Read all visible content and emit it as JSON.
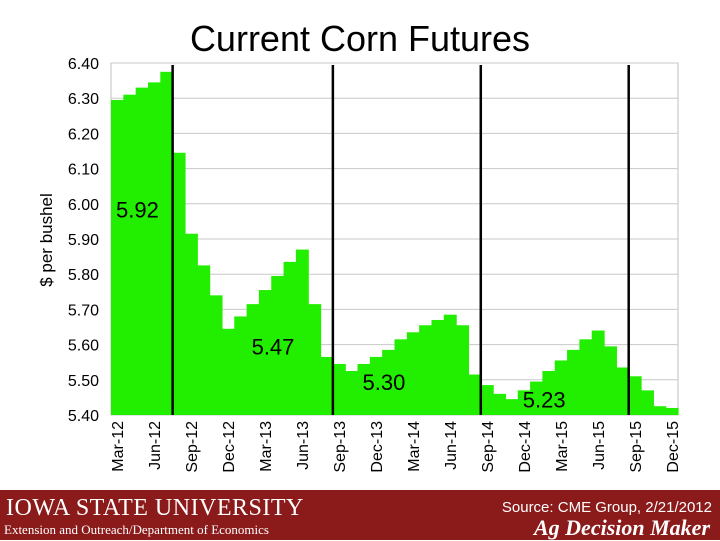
{
  "chart_data": {
    "type": "bar",
    "title": "Current Corn Futures",
    "ylabel": "$ per bushel",
    "xlabel": "",
    "ylim": [
      5.4,
      6.4
    ],
    "yticks": [
      "6.40",
      "6.30",
      "6.20",
      "6.10",
      "6.00",
      "5.90",
      "5.80",
      "5.70",
      "5.60",
      "5.50",
      "5.40"
    ],
    "grid": true,
    "categories": [
      "Mar-12",
      "Apr-12",
      "May-12",
      "Jun-12",
      "Jul-12",
      "Aug-12",
      "Sep-12",
      "Oct-12",
      "Nov-12",
      "Dec-12",
      "Jan-13",
      "Feb-13",
      "Mar-13",
      "Apr-13",
      "May-13",
      "Jun-13",
      "Jul-13",
      "Aug-13",
      "Sep-13",
      "Oct-13",
      "Nov-13",
      "Dec-13",
      "Jan-14",
      "Feb-14",
      "Mar-14",
      "Apr-14",
      "May-14",
      "Jun-14",
      "Jul-14",
      "Aug-14",
      "Sep-14",
      "Oct-14",
      "Nov-14",
      "Dec-14",
      "Jan-15",
      "Feb-15",
      "Mar-15",
      "Apr-15",
      "May-15",
      "Jun-15",
      "Jul-15",
      "Aug-15",
      "Sep-15",
      "Oct-15",
      "Nov-15",
      "Dec-15"
    ],
    "xtick_labels": [
      "Mar-12",
      "Jun-12",
      "Sep-12",
      "Dec-12",
      "Mar-13",
      "Jun-13",
      "Sep-13",
      "Dec-13",
      "Mar-14",
      "Jun-14",
      "Sep-14",
      "Dec-14",
      "Mar-15",
      "Jun-15",
      "Sep-15",
      "Dec-15"
    ],
    "values": [
      6.295,
      6.31,
      6.33,
      6.345,
      6.375,
      6.145,
      5.915,
      5.825,
      5.74,
      5.645,
      5.68,
      5.715,
      5.755,
      5.795,
      5.835,
      5.87,
      5.715,
      5.565,
      5.545,
      5.525,
      5.545,
      5.565,
      5.585,
      5.615,
      5.635,
      5.655,
      5.67,
      5.685,
      5.655,
      5.515,
      5.485,
      5.46,
      5.445,
      5.47,
      5.495,
      5.525,
      5.555,
      5.585,
      5.615,
      5.64,
      5.595,
      5.535,
      5.51,
      5.47,
      5.425,
      5.42
    ],
    "bar_color": "#22ee00",
    "divider_after": [
      "Jul-12",
      "Aug-13",
      "Aug-14",
      "Aug-15"
    ],
    "annotations": [
      {
        "text": "5.92",
        "category": "Mar-12",
        "y": 5.99
      },
      {
        "text": "5.47",
        "category": "Feb-13",
        "y": 5.6
      },
      {
        "text": "5.30",
        "category": "Nov-13",
        "y": 5.5
      },
      {
        "text": "5.23",
        "category": "Dec-14",
        "y": 5.45
      }
    ]
  },
  "footer": {
    "university": "IOWA STATE UNIVERSITY",
    "department": "Extension and Outreach/Department of Economics",
    "source": "Source: CME Group, 2/21/2012",
    "brand": "Ag Decision Maker",
    "background": "#8b1a1a"
  }
}
